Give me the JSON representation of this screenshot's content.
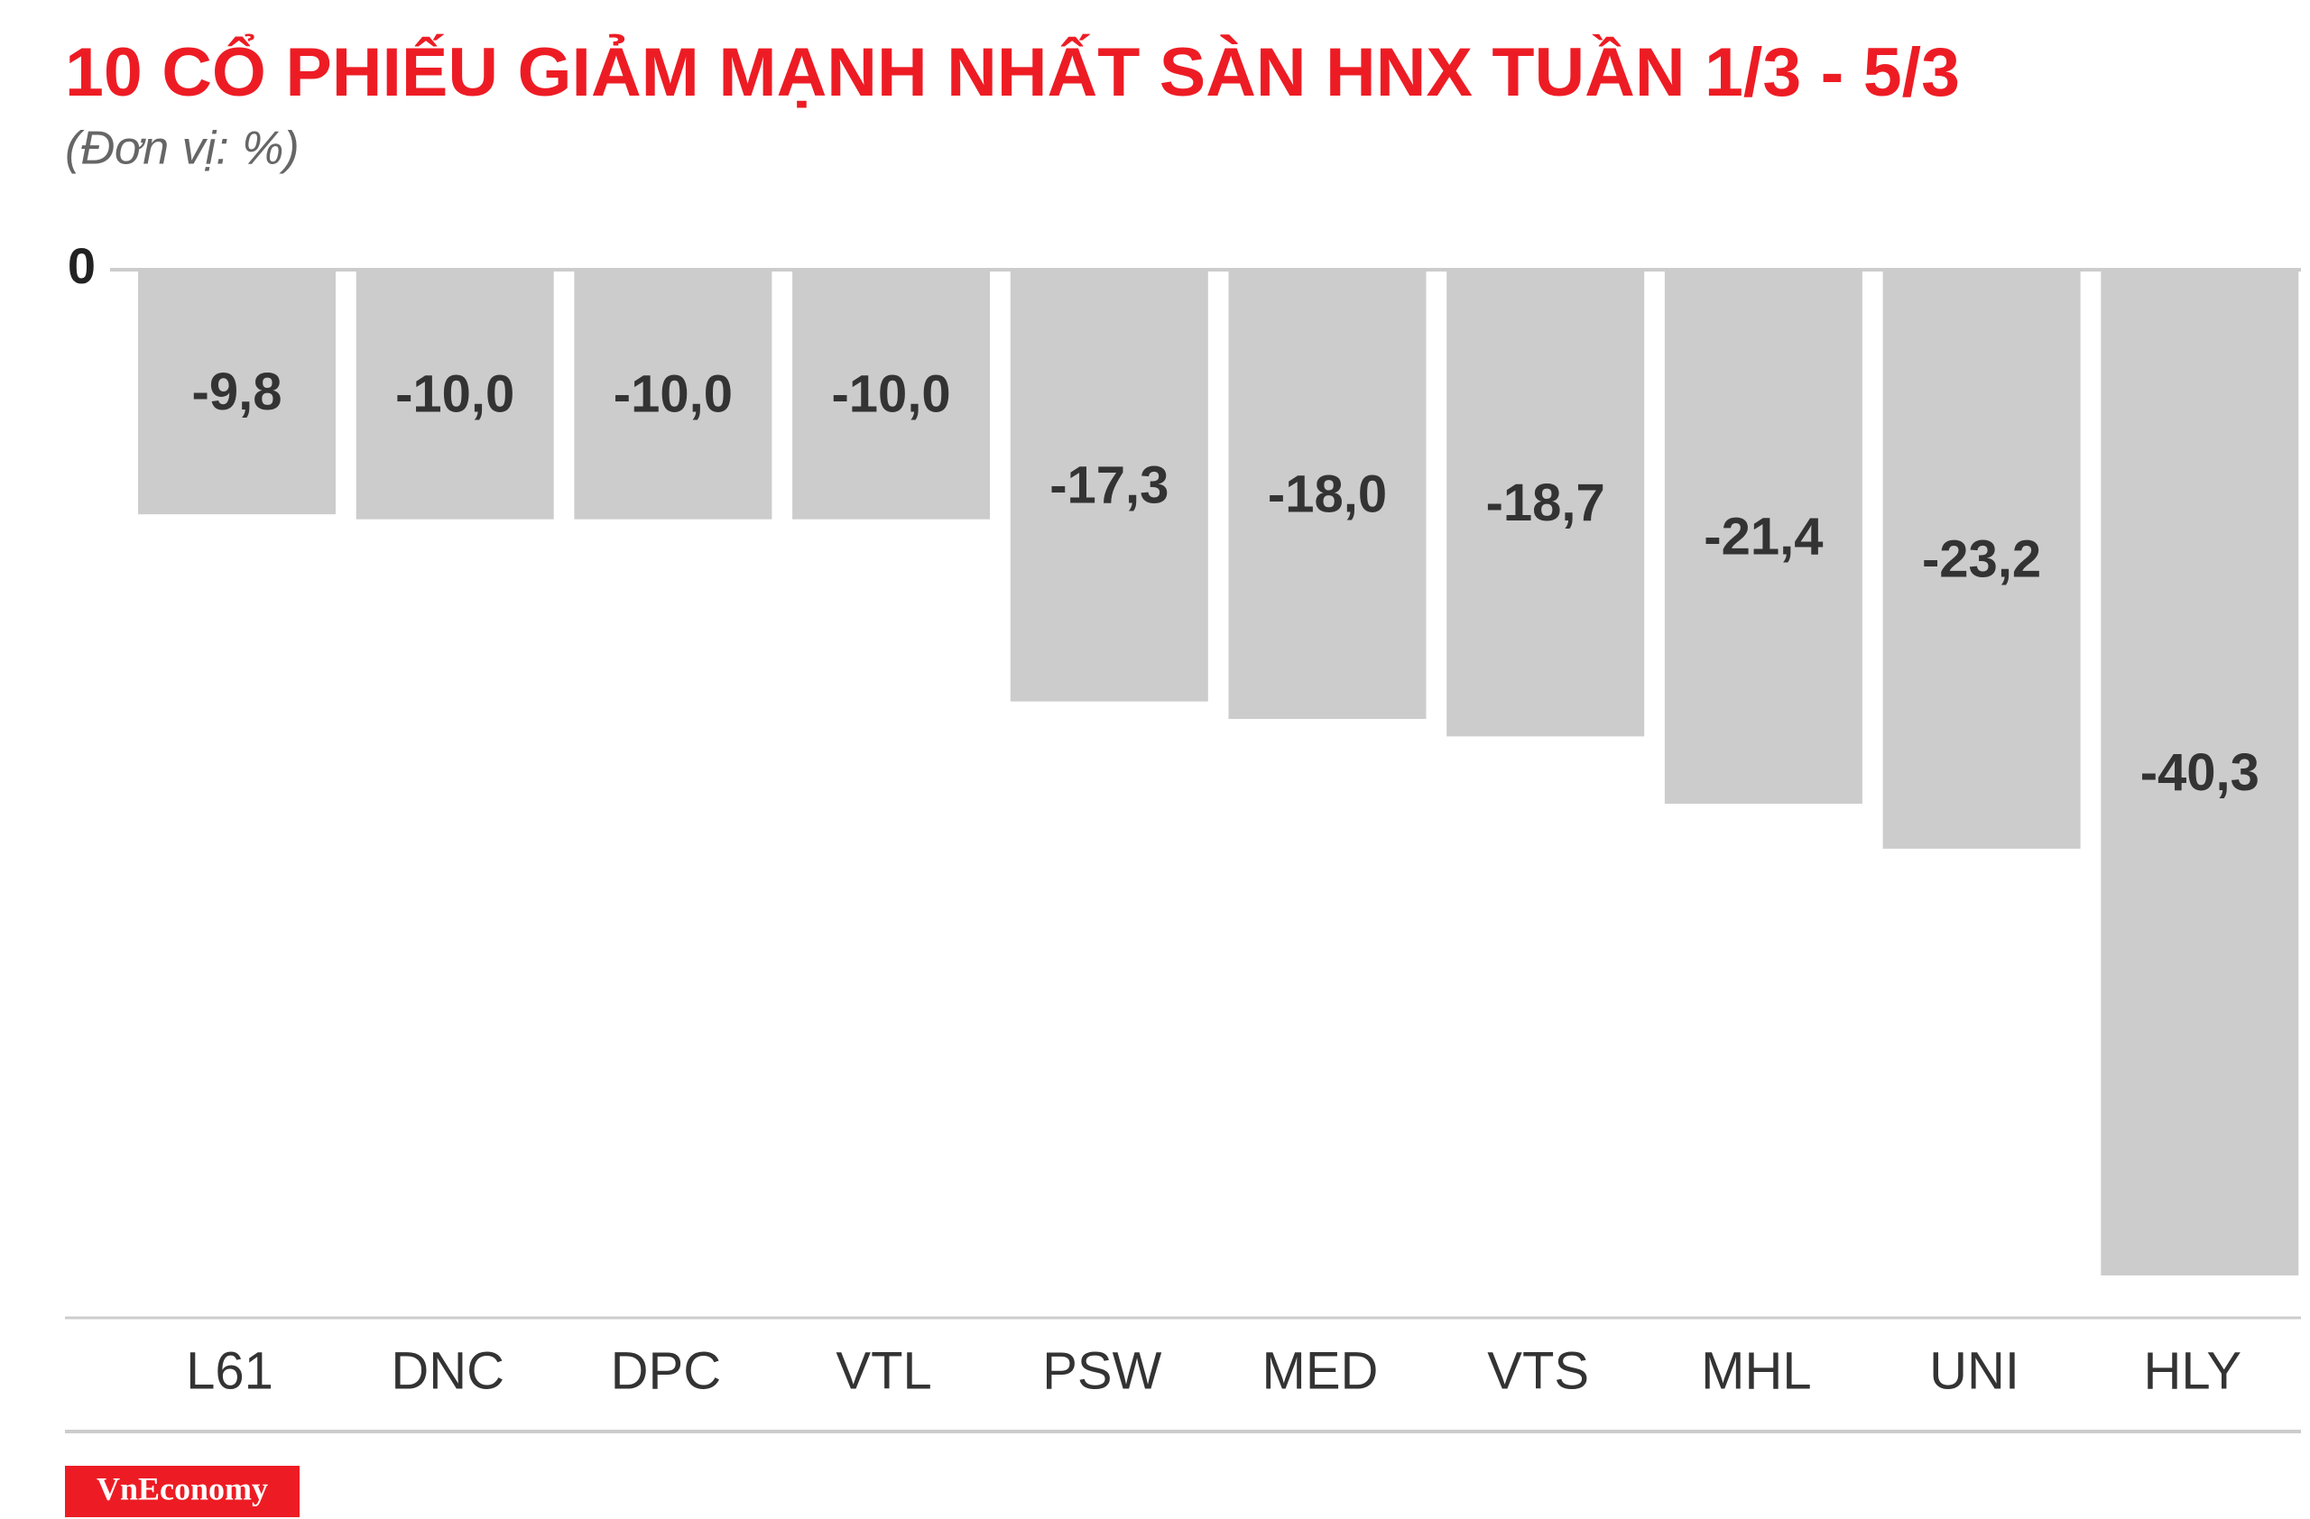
{
  "chart_data": {
    "type": "bar",
    "title": "10 CỔ PHIẾU GIẢM MẠNH NHẤT SÀN HNX TUẦN 1/3 - 5/3",
    "subtitle": "(Đơn vị: %)",
    "categories": [
      "L61",
      "DNC",
      "DPC",
      "VTL",
      "PSW",
      "MED",
      "VTS",
      "MHL",
      "UNI",
      "HLY"
    ],
    "values": [
      -9.8,
      -10.0,
      -10.0,
      -10.0,
      -17.3,
      -18.0,
      -18.7,
      -21.4,
      -23.2,
      -40.3
    ],
    "value_labels": [
      "-9,8",
      "-10,0",
      "-10,0",
      "-10,0",
      "-17,3",
      "-18,0",
      "-18,7",
      "-21,4",
      "-23,2",
      "-40,3"
    ],
    "color": "#cccccc",
    "ylim": [
      -42,
      0
    ],
    "yticks": [
      0
    ],
    "source": "VnEconomy"
  }
}
